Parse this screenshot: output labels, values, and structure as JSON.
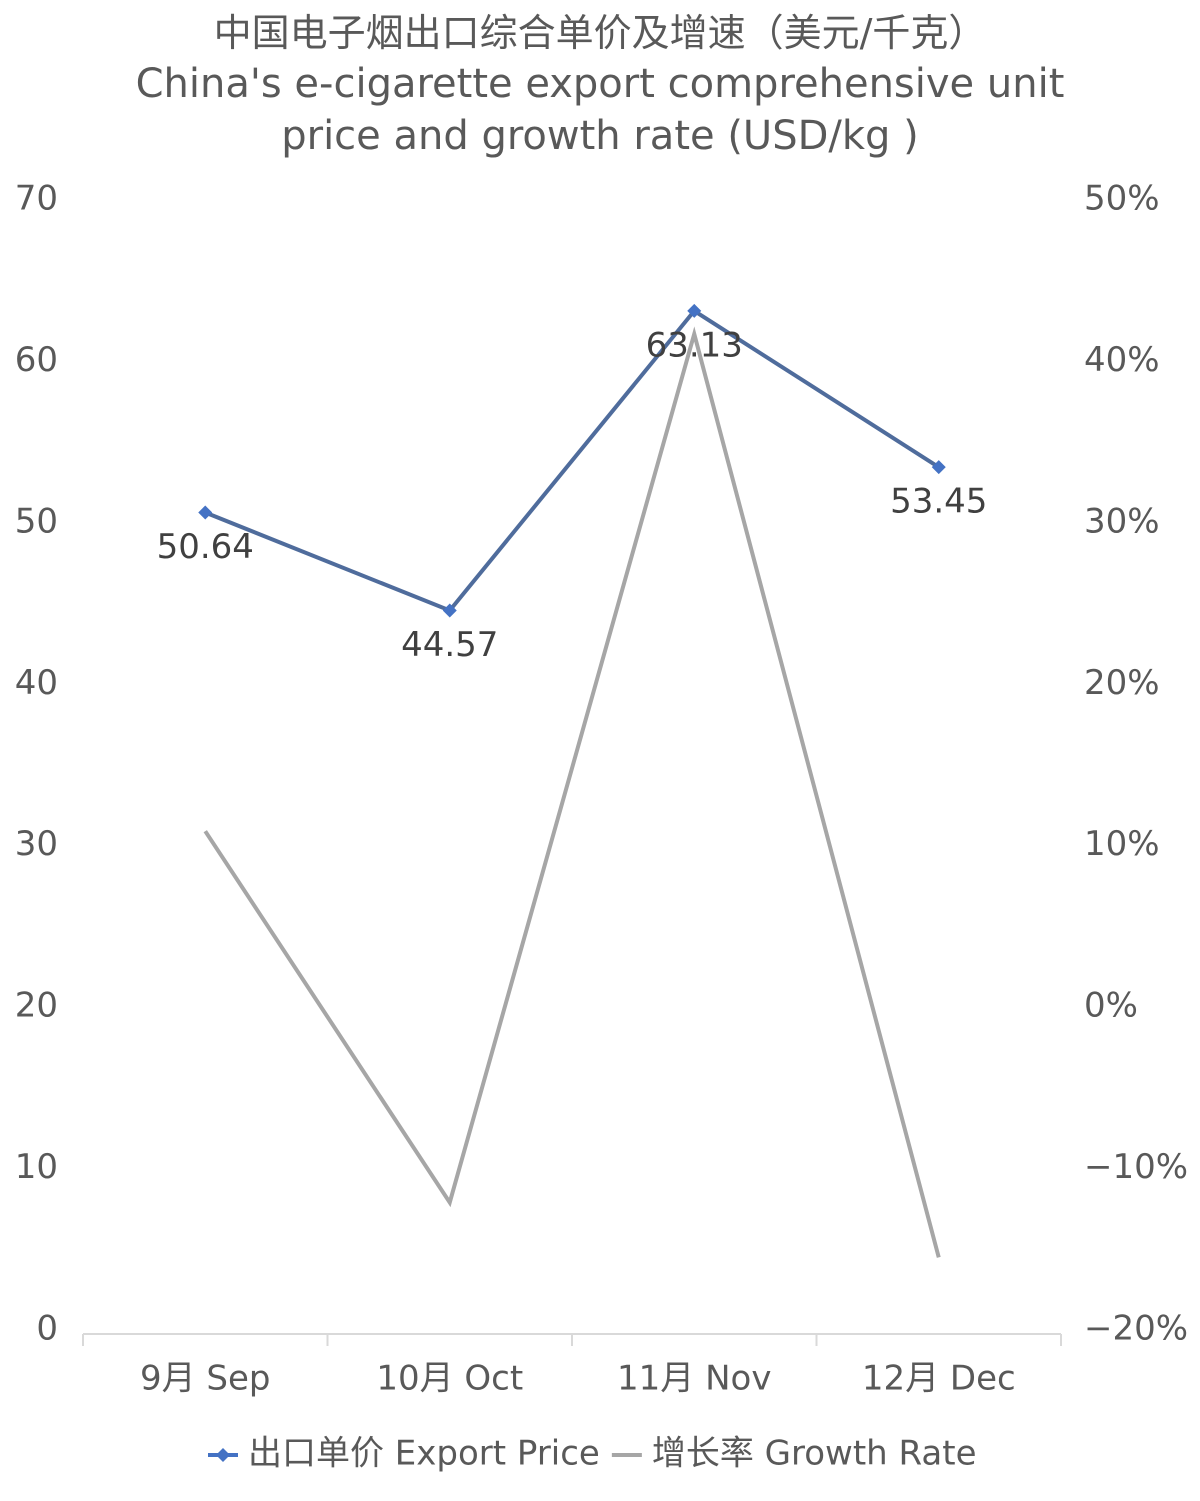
{
  "chart_data": {
    "type": "line",
    "title": "中国电子烟出口综合单价及增速（美元/千克）",
    "subtitle": "China's e-cigarette export comprehensive unit price and growth rate (USD/kg )",
    "categories": [
      "9月 Sep",
      "10月 Oct",
      "11月 Nov",
      "12月 Dec"
    ],
    "series": [
      {
        "name": "出口单价 Export Price",
        "color": "#4f6c9c",
        "marker_color": "#4472c4",
        "values": [
          50.64,
          44.57,
          63.13,
          53.45
        ]
      },
      {
        "name": "增长率 Growth Rate",
        "color": "#a6a6a6",
        "axis": "y2",
        "values": [
          10.9,
          -12.1,
          41.7,
          -15.5
        ]
      }
    ],
    "ylim": [
      0,
      70
    ],
    "yticks": [
      0,
      10,
      20,
      30,
      40,
      50,
      60,
      70
    ],
    "y2lim": [
      -20,
      50
    ],
    "y2ticks": [
      {
        "value": -20,
        "label": "−20%"
      },
      {
        "value": -10,
        "label": "−10%"
      },
      {
        "value": 0,
        "label": "0%"
      },
      {
        "value": 10,
        "label": "10%"
      },
      {
        "value": 20,
        "label": "20%"
      },
      {
        "value": 30,
        "label": "30%"
      },
      {
        "value": 40,
        "label": "40%"
      },
      {
        "value": 50,
        "label": "50%"
      }
    ],
    "legend": "bottom"
  }
}
